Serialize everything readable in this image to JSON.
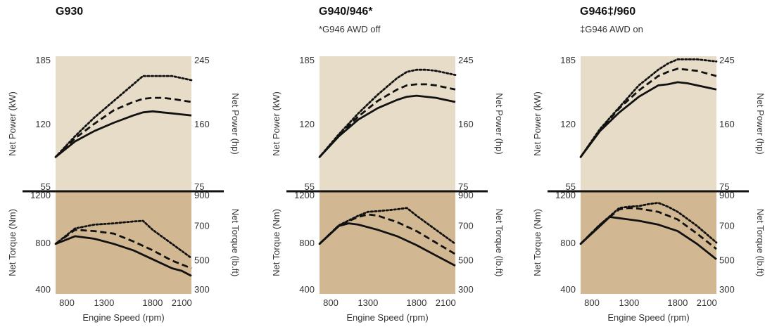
{
  "chart_data": [
    {
      "type": "line",
      "title": "G930",
      "note": "",
      "xlabel": "Engine Speed (rpm)",
      "xlim": [
        800,
        2200
      ],
      "xticks": [
        "800",
        "1300",
        "1800",
        "2100"
      ],
      "power": {
        "ylabel_left": "Net Power (kW)",
        "ylabel_right": "Net Power (hp)",
        "ylim": [
          55,
          185
        ],
        "yticks_left": [
          "185",
          "120",
          "55"
        ],
        "yticks_right": [
          "245",
          "160",
          "75"
        ],
        "series": [
          {
            "style": "solid",
            "x": [
              800,
              1000,
              1200,
              1400,
              1600,
              1700,
              1800,
              1900,
              2000,
              2200
            ],
            "y": [
              88,
              103,
              113,
              121,
              128,
              131,
              132,
              131,
              130,
              128
            ]
          },
          {
            "style": "dashed",
            "x": [
              800,
              1000,
              1200,
              1400,
              1600,
              1700,
              1800,
              1900,
              2000,
              2200
            ],
            "y": [
              88,
              106,
              120,
              133,
              141,
              144,
              145,
              145,
              144,
              141
            ]
          },
          {
            "style": "dotted",
            "x": [
              800,
              1000,
              1200,
              1400,
              1600,
              1700,
              1800,
              1900,
              2000,
              2200
            ],
            "y": [
              88,
              108,
              126,
              142,
              158,
              166,
              166,
              166,
              166,
              162
            ]
          }
        ]
      },
      "torque": {
        "ylabel_left": "Net Torque (Nm)",
        "ylabel_right": "Net Torque (lb.ft)",
        "ylim": [
          400,
          1200
        ],
        "yticks_left": [
          "1200",
          "800",
          "400"
        ],
        "yticks_right": [
          "900",
          "700",
          "500",
          "300"
        ],
        "series": [
          {
            "style": "solid",
            "x": [
              800,
              1000,
              1200,
              1400,
              1600,
              1800,
              2000,
              2100,
              2200
            ],
            "y": [
              790,
              850,
              830,
              790,
              740,
              670,
              600,
              580,
              540
            ]
          },
          {
            "style": "dashed",
            "x": [
              800,
              1000,
              1200,
              1400,
              1600,
              1800,
              2000,
              2200
            ],
            "y": [
              790,
              900,
              890,
              870,
              810,
              740,
              660,
              600
            ]
          },
          {
            "style": "dotted",
            "x": [
              800,
              1000,
              1200,
              1400,
              1600,
              1700,
              1800,
              2000,
              2200
            ],
            "y": [
              790,
              910,
              940,
              950,
              965,
              970,
              900,
              790,
              680
            ]
          }
        ]
      }
    },
    {
      "type": "line",
      "title": "G940/946*",
      "note": "*G946 AWD off",
      "xlabel": "Engine Speed (rpm)",
      "xlim": [
        800,
        2200
      ],
      "xticks": [
        "800",
        "1300",
        "1800",
        "2100"
      ],
      "power": {
        "ylabel_left": "Net Power (kW)",
        "ylabel_right": "Net Power (hp)",
        "ylim": [
          55,
          185
        ],
        "yticks_left": [
          "185",
          "120",
          "55"
        ],
        "yticks_right": [
          "245",
          "160",
          "75"
        ],
        "series": [
          {
            "style": "solid",
            "x": [
              800,
              1000,
              1200,
              1400,
              1600,
              1700,
              1800,
              1900,
              2000,
              2200
            ],
            "y": [
              88,
              108,
              124,
              135,
              143,
              146,
              147,
              146,
              145,
              141
            ]
          },
          {
            "style": "dashed",
            "x": [
              800,
              1000,
              1200,
              1400,
              1600,
              1700,
              1800,
              1900,
              2000,
              2200
            ],
            "y": [
              88,
              109,
              127,
              142,
              153,
              157,
              158,
              158,
              157,
              153
            ]
          },
          {
            "style": "dotted",
            "x": [
              800,
              1000,
              1200,
              1400,
              1600,
              1700,
              1800,
              1900,
              2000,
              2200
            ],
            "y": [
              88,
              110,
              130,
              148,
              164,
              170,
              172,
              172,
              171,
              167
            ]
          }
        ]
      },
      "torque": {
        "ylabel_left": "Net Torque (Nm)",
        "ylabel_right": "Net Torque (lb.ft)",
        "ylim": [
          400,
          1200
        ],
        "yticks_left": [
          "1200",
          "800",
          "400"
        ],
        "yticks_right": [
          "900",
          "700",
          "500",
          "300"
        ],
        "series": [
          {
            "style": "solid",
            "x": [
              800,
              1000,
              1100,
              1200,
              1400,
              1600,
              1800,
              2000,
              2200
            ],
            "y": [
              790,
              930,
              950,
              940,
              900,
              850,
              780,
              700,
              620
            ]
          },
          {
            "style": "dashed",
            "x": [
              800,
              1000,
              1200,
              1300,
              1400,
              1600,
              1800,
              2000,
              2200
            ],
            "y": [
              790,
              935,
              1000,
              1020,
              1010,
              960,
              890,
              800,
              710
            ]
          },
          {
            "style": "dotted",
            "x": [
              800,
              1000,
              1200,
              1300,
              1400,
              1600,
              1700,
              1800,
              2000,
              2200
            ],
            "y": [
              790,
              935,
              1010,
              1040,
              1045,
              1060,
              1070,
              1010,
              900,
              790
            ]
          }
        ]
      }
    },
    {
      "type": "line",
      "title": "G946‡/960",
      "note": "‡G946 AWD on",
      "xlabel": "Engine Speed (rpm)",
      "xlim": [
        800,
        2200
      ],
      "xticks": [
        "800",
        "1300",
        "1800",
        "2100"
      ],
      "power": {
        "ylabel_left": "Net Power (kW)",
        "ylabel_right": "Net Power (hp)",
        "ylim": [
          55,
          185
        ],
        "yticks_left": [
          "185",
          "120",
          "55"
        ],
        "yticks_right": [
          "245",
          "160",
          "75"
        ],
        "series": [
          {
            "style": "solid",
            "x": [
              800,
              1000,
              1200,
              1400,
              1600,
              1700,
              1800,
              1900,
              2000,
              2200
            ],
            "y": [
              88,
              113,
              131,
              146,
              157,
              158,
              160,
              159,
              157,
              153
            ]
          },
          {
            "style": "dashed",
            "x": [
              800,
              1000,
              1200,
              1400,
              1600,
              1700,
              1800,
              1900,
              2000,
              2200
            ],
            "y": [
              88,
              114,
              135,
              152,
              166,
              170,
              173,
              172,
              171,
              166
            ]
          },
          {
            "style": "dotted",
            "x": [
              800,
              1000,
              1200,
              1400,
              1600,
              1700,
              1800,
              1900,
              2000,
              2200
            ],
            "y": [
              88,
              115,
              136,
              157,
              172,
              178,
              182,
              182,
              182,
              180
            ]
          }
        ]
      },
      "torque": {
        "ylabel_left": "Net Torque (Nm)",
        "ylabel_right": "Net Torque (lb.ft)",
        "ylim": [
          400,
          1200
        ],
        "yticks_left": [
          "1200",
          "800",
          "400"
        ],
        "yticks_right": [
          "900",
          "700",
          "500",
          "300"
        ],
        "series": [
          {
            "style": "solid",
            "x": [
              800,
              1000,
              1100,
              1200,
              1400,
              1600,
              1800,
              2000,
              2200
            ],
            "y": [
              790,
              930,
              1000,
              990,
              970,
              940,
              890,
              790,
              670
            ]
          },
          {
            "style": "dashed",
            "x": [
              800,
              1000,
              1200,
              1300,
              1400,
              1600,
              1800,
              2000,
              2200
            ],
            "y": [
              790,
              940,
              1060,
              1070,
              1065,
              1040,
              980,
              870,
              750
            ]
          },
          {
            "style": "dotted",
            "x": [
              800,
              1000,
              1200,
              1300,
              1400,
              1500,
              1600,
              1700,
              1800,
              2000,
              2200
            ],
            "y": [
              790,
              940,
              1070,
              1080,
              1085,
              1100,
              1110,
              1080,
              1040,
              930,
              800
            ]
          }
        ]
      }
    }
  ],
  "colors": {
    "power_bg": "#e6dcc8",
    "torque_bg": "#d2b892",
    "line": "#111111",
    "divider": "#111111"
  }
}
